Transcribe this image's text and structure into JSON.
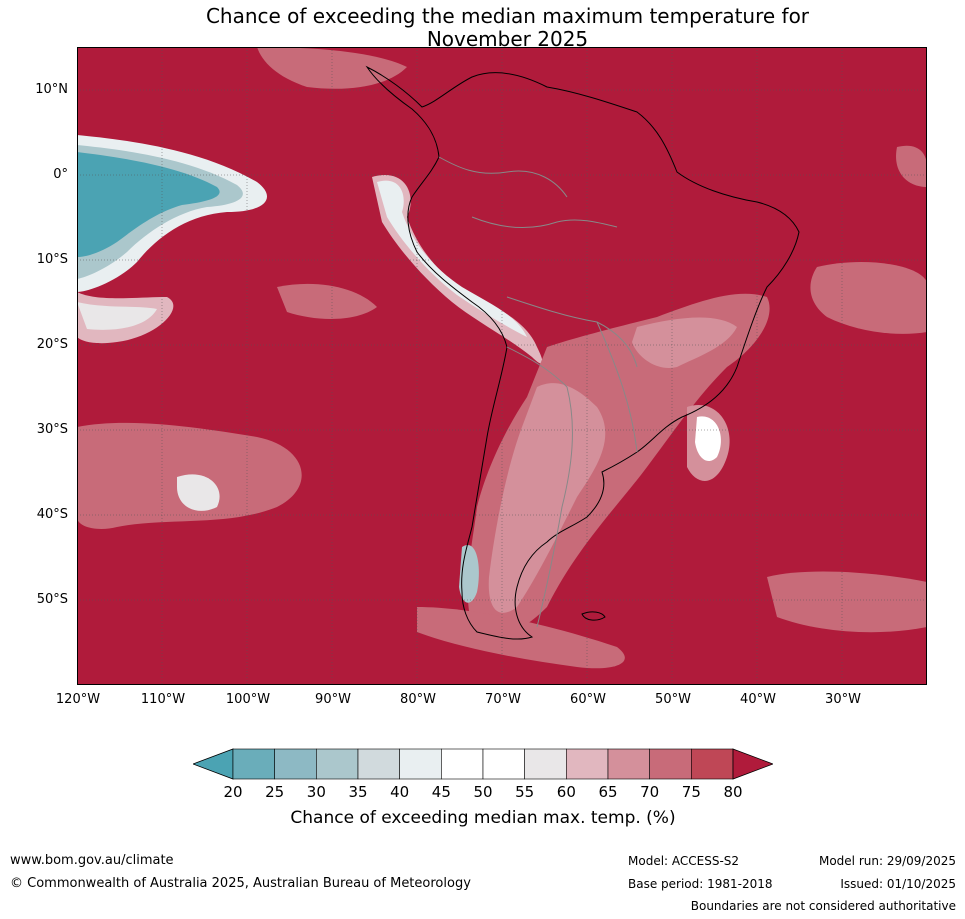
{
  "title": {
    "line1": "Chance of exceeding the median maximum temperature for",
    "line2": "November 2025"
  },
  "map": {
    "latitude_labels": [
      "10°N",
      "0°",
      "10°S",
      "20°S",
      "30°S",
      "40°S",
      "50°S"
    ],
    "longitude_labels": [
      "120°W",
      "110°W",
      "100°W",
      "90°W",
      "80°W",
      "70°W",
      "60°W",
      "50°W",
      "40°W",
      "30°W"
    ],
    "dominant_probability_color": "#b01b3b"
  },
  "colorbar": {
    "ticks": [
      "20",
      "25",
      "30",
      "35",
      "40",
      "45",
      "50",
      "55",
      "60",
      "65",
      "70",
      "75",
      "80"
    ],
    "colors": [
      "#4ba3b3",
      "#6aadba",
      "#8db9c4",
      "#abc7cc",
      "#d1dadd",
      "#e9eff1",
      "#ffffff",
      "#ffffff",
      "#e9e7e8",
      "#e1b7bf",
      "#d4909b",
      "#c86b79",
      "#bf4756",
      "#b01b3b"
    ],
    "label": "Chance of exceeding median max. temp. (%)"
  },
  "footer": {
    "website": "www.bom.gov.au/climate",
    "copyright": "© Commonwealth of Australia 2025, Australian Bureau of Meteorology",
    "model": "Model: ACCESS-S2",
    "base_period": "Base period: 1981-2018",
    "model_run": "Model run: 29/09/2025",
    "issued": "Issued: 01/10/2025",
    "disclaimer": "Boundaries are not considered authoritative"
  }
}
